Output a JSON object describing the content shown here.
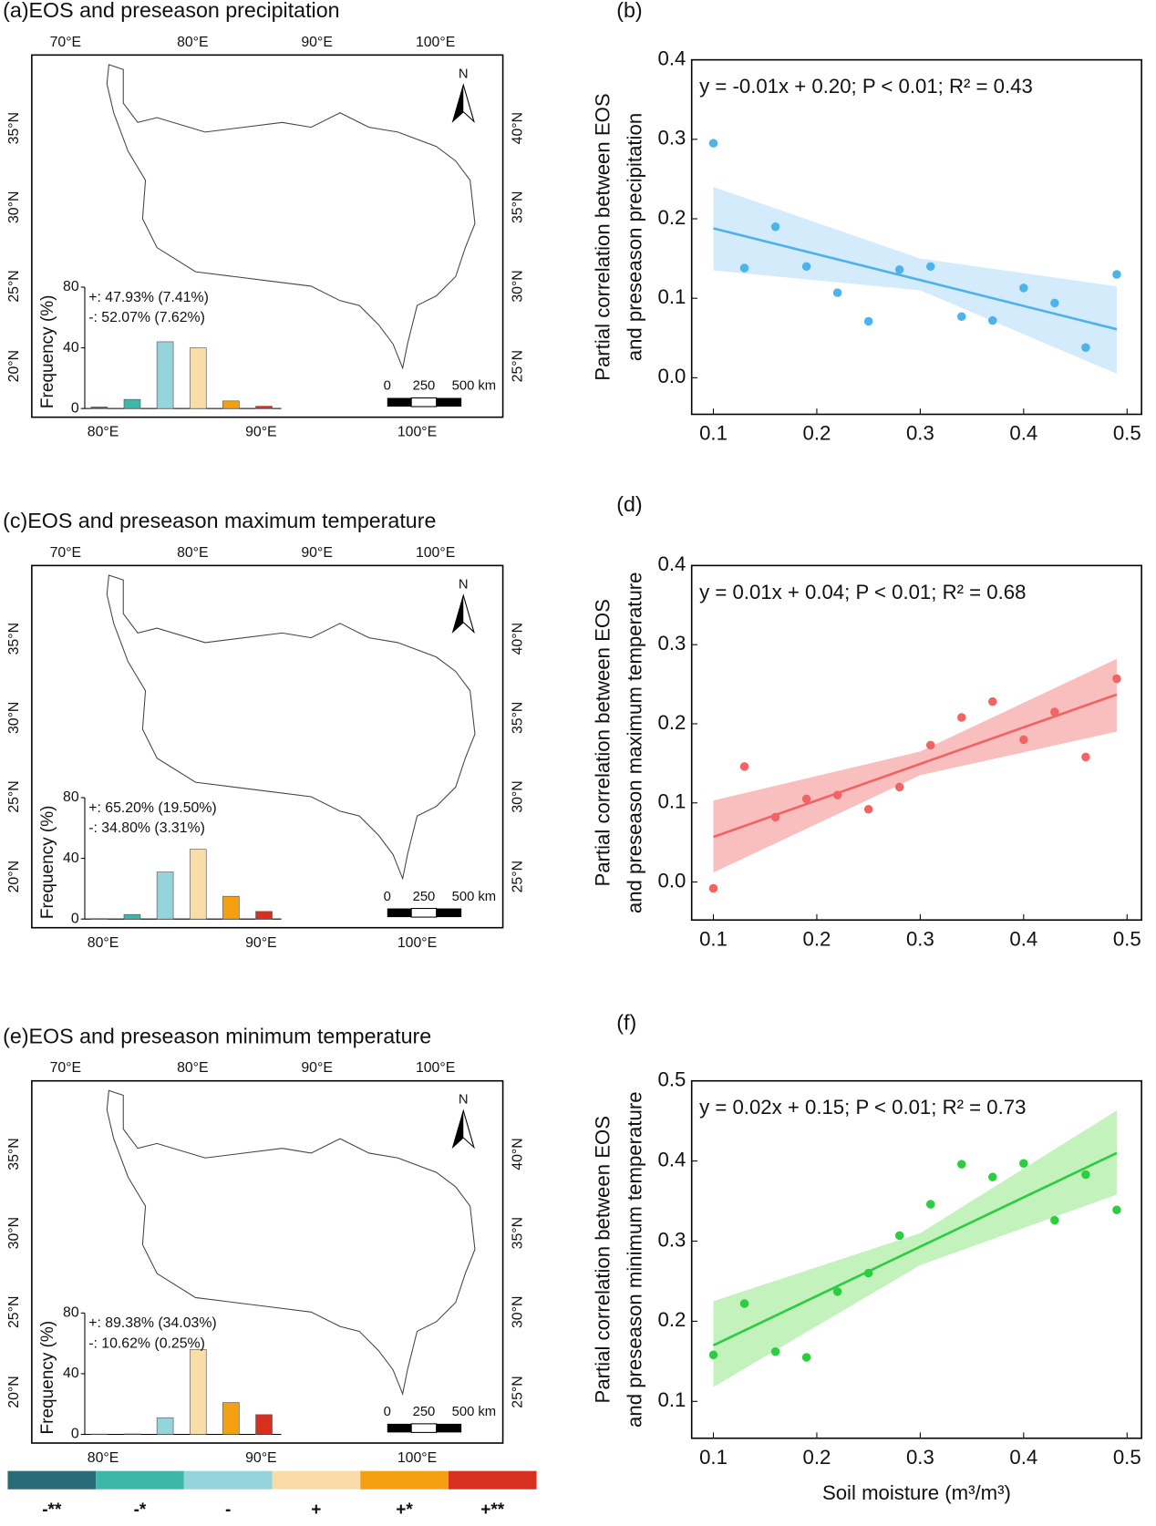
{
  "chart_data": [
    {
      "type": "map",
      "title": "(a)EOS and preseason precipitation",
      "lon_top": [
        "70°E",
        "80°E",
        "90°E",
        "100°E"
      ],
      "lat_left": [
        "35°N",
        "30°N",
        "25°N",
        "20°N"
      ],
      "lat_right": [
        "40°N",
        "35°N",
        "30°N",
        "25°N"
      ],
      "lon_bottom": [
        "80°E",
        "90°E",
        "100°E"
      ],
      "north": "N",
      "scale_labels": [
        "0",
        "250",
        "500 km"
      ],
      "inset": {
        "type": "bar",
        "ylabel": "Frequency (%)",
        "values": [
          1,
          6,
          44,
          40,
          5,
          1.5
        ],
        "ylim": [
          0,
          80
        ],
        "yticks": [
          0,
          40,
          80
        ],
        "stats": [
          "+: 47.93% (7.41%)",
          "-: 52.07% (7.62%)"
        ]
      }
    },
    {
      "type": "scatter",
      "label": "(b)",
      "equation": "y = -0.01x + 0.20; P < 0.01; R² = 0.43",
      "ylabel": [
        "Partial correlation between EOS",
        "and preseason precipitation"
      ],
      "x": [
        0.1,
        0.13,
        0.16,
        0.19,
        0.22,
        0.25,
        0.28,
        0.31,
        0.34,
        0.37,
        0.4,
        0.43,
        0.46,
        0.49
      ],
      "y": [
        0.295,
        0.138,
        0.19,
        0.14,
        0.107,
        0.071,
        0.136,
        0.14,
        0.077,
        0.072,
        0.113,
        0.094,
        0.038,
        0.13
      ],
      "color": "#4db3e8",
      "band_color": "#cce8fa",
      "fit": {
        "x": [
          0.1,
          0.49
        ],
        "y": [
          0.188,
          0.061
        ]
      },
      "ci": {
        "x": [
          0.1,
          0.3,
          0.49
        ],
        "lower": [
          0.135,
          0.11,
          0.005
        ],
        "upper": [
          0.24,
          0.15,
          0.115
        ]
      },
      "xlim": [
        0.079,
        0.514
      ],
      "ylim": [
        -0.046,
        0.4
      ],
      "xticks": [
        0.1,
        0.2,
        0.3,
        0.4,
        0.5
      ],
      "yticks": [
        {
          "value": 0,
          "label": "0.0"
        },
        0.1,
        0.2,
        0.3,
        0.4
      ]
    },
    {
      "type": "map",
      "title": "(c)EOS and preseason maximum temperature",
      "lon_top": [
        "70°E",
        "80°E",
        "90°E",
        "100°E"
      ],
      "lat_left": [
        "35°N",
        "30°N",
        "25°N",
        "20°N"
      ],
      "lat_right": [
        "40°N",
        "35°N",
        "30°N",
        "25°N"
      ],
      "lon_bottom": [
        "80°E",
        "90°E",
        "100°E"
      ],
      "north": "N",
      "scale_labels": [
        "0",
        "250",
        "500 km"
      ],
      "inset": {
        "type": "bar",
        "ylabel": "Frequency (%)",
        "values": [
          0.3,
          3,
          31,
          46,
          15,
          5
        ],
        "ylim": [
          0,
          80
        ],
        "yticks": [
          0,
          40,
          80
        ],
        "stats": [
          "+: 65.20% (19.50%)",
          "-: 34.80% (3.31%)"
        ]
      }
    },
    {
      "type": "scatter",
      "label": "(d)",
      "equation": "y = 0.01x + 0.04; P < 0.01; R² = 0.68",
      "ylabel": [
        "Partial correlation between EOS",
        "and preseason maximum temperature"
      ],
      "x": [
        0.1,
        0.13,
        0.16,
        0.19,
        0.22,
        0.25,
        0.28,
        0.31,
        0.34,
        0.37,
        0.4,
        0.43,
        0.46,
        0.49
      ],
      "y": [
        -0.008,
        0.146,
        0.082,
        0.105,
        0.11,
        0.092,
        0.12,
        0.173,
        0.208,
        0.228,
        0.18,
        0.215,
        0.158,
        0.257
      ],
      "color": "#f06464",
      "band_color": "#f8b4b4",
      "fit": {
        "x": [
          0.1,
          0.49
        ],
        "y": [
          0.057,
          0.237
        ]
      },
      "ci": {
        "x": [
          0.1,
          0.3,
          0.49
        ],
        "lower": [
          0.012,
          0.135,
          0.19
        ],
        "upper": [
          0.103,
          0.165,
          0.282
        ]
      },
      "xlim": [
        0.079,
        0.514
      ],
      "ylim": [
        -0.048,
        0.4
      ],
      "xticks": [
        0.1,
        0.2,
        0.3,
        0.4,
        0.5
      ],
      "yticks": [
        {
          "value": 0,
          "label": "0.0"
        },
        0.1,
        0.2,
        0.3,
        0.4
      ]
    },
    {
      "type": "map",
      "title": "(e)EOS and preseason minimum temperature",
      "lon_top": [
        "70°E",
        "80°E",
        "90°E",
        "100°E"
      ],
      "lat_left": [
        "35°N",
        "30°N",
        "25°N",
        "20°N"
      ],
      "lat_right": [
        "40°N",
        "35°N",
        "30°N",
        "25°N"
      ],
      "lon_bottom": [
        "80°E",
        "90°E",
        "100°E"
      ],
      "north": "N",
      "scale_labels": [
        "0",
        "250",
        "500 km"
      ],
      "inset": {
        "type": "bar",
        "ylabel": "Frequency (%)",
        "values": [
          0.2,
          0.3,
          11,
          56,
          21,
          13
        ],
        "ylim": [
          0,
          80
        ],
        "yticks": [
          0,
          40,
          80
        ],
        "stats": [
          "+: 89.38% (34.03%)",
          "-: 10.62% (0.25%)"
        ]
      }
    },
    {
      "type": "scatter",
      "label": "(f)",
      "equation": "y = 0.02x + 0.15; P < 0.01; R² = 0.73",
      "ylabel": [
        "Partial correlation between EOS",
        "and preseason minimum temperature"
      ],
      "xlabel": "Soil moisture (m³/m³)",
      "x": [
        0.1,
        0.13,
        0.16,
        0.19,
        0.22,
        0.25,
        0.28,
        0.31,
        0.34,
        0.37,
        0.4,
        0.43,
        0.46,
        0.49
      ],
      "y": [
        0.158,
        0.222,
        0.162,
        0.155,
        0.237,
        0.26,
        0.307,
        0.346,
        0.396,
        0.38,
        0.397,
        0.326,
        0.383,
        0.339
      ],
      "color": "#2ecc40",
      "band_color": "#b8f0b0",
      "fit": {
        "x": [
          0.1,
          0.49
        ],
        "y": [
          0.17,
          0.41
        ]
      },
      "ci": {
        "x": [
          0.1,
          0.3,
          0.49
        ],
        "lower": [
          0.118,
          0.27,
          0.358
        ],
        "upper": [
          0.225,
          0.31,
          0.463
        ]
      },
      "xlim": [
        0.079,
        0.514
      ],
      "ylim": [
        0.054,
        0.5
      ],
      "xticks": [
        0.1,
        0.2,
        0.3,
        0.4,
        0.5
      ],
      "yticks": [
        0.1,
        0.2,
        0.3,
        0.4,
        0.5
      ]
    }
  ],
  "colorbar": {
    "labels": [
      "-**",
      "-*",
      "-",
      "+",
      "+*",
      "+**"
    ],
    "colors": [
      "#2a6b78",
      "#3db8a8",
      "#96d4dc",
      "#fadca8",
      "#f5a010",
      "#d83020"
    ]
  }
}
